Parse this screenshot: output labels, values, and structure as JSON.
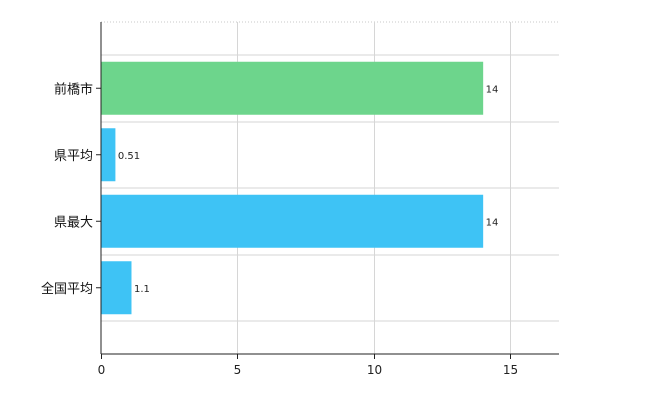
{
  "chart_data": {
    "type": "bar",
    "orientation": "horizontal",
    "categories": [
      "前橋市",
      "県平均",
      "県最大",
      "全国平均"
    ],
    "values": [
      14,
      0.51,
      14,
      1.1
    ],
    "value_labels": [
      "14",
      "0.51",
      "14",
      "1.1"
    ],
    "bar_colors": [
      "#6dd58c",
      "#3ec3f5",
      "#3ec3f5",
      "#3ec3f5"
    ],
    "xlim": [
      0,
      16.8
    ],
    "xticks": [
      0,
      5,
      10,
      15
    ],
    "xtick_labels": [
      "0",
      "5",
      "10",
      "15"
    ],
    "grid": true,
    "legend": "none",
    "title": "",
    "xlabel": "",
    "ylabel": ""
  }
}
